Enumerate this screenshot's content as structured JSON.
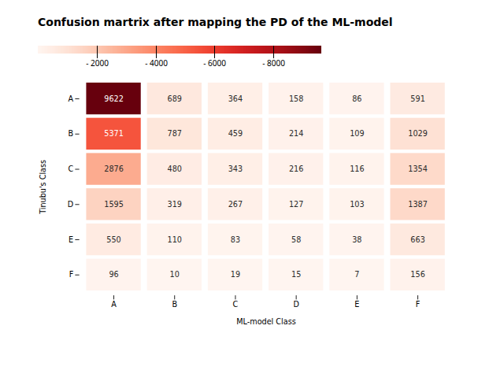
{
  "chart_data": {
    "type": "heatmap",
    "title": "Confusion martrix after mapping the PD of the ML-model",
    "xlabel": "ML-model Class",
    "ylabel": "Tinubu's Class",
    "x": [
      "A",
      "B",
      "C",
      "D",
      "E",
      "F"
    ],
    "y": [
      "A",
      "B",
      "C",
      "D",
      "E",
      "F"
    ],
    "values": [
      [
        9622,
        689,
        364,
        158,
        86,
        591
      ],
      [
        5371,
        787,
        459,
        214,
        109,
        1029
      ],
      [
        2876,
        480,
        343,
        216,
        116,
        1354
      ],
      [
        1595,
        319,
        267,
        127,
        103,
        1387
      ],
      [
        550,
        110,
        83,
        58,
        38,
        663
      ],
      [
        96,
        10,
        19,
        15,
        7,
        156
      ]
    ],
    "color": "Reds",
    "colorbar": {
      "lim": [
        0,
        9622
      ],
      "ticks": [
        {
          "value": 2000,
          "label": "- 2000"
        },
        {
          "value": 4000,
          "label": "- 4000"
        },
        {
          "value": 6000,
          "label": "- 6000"
        },
        {
          "value": 8000,
          "label": "- 8000"
        }
      ]
    },
    "data_labels": true
  }
}
